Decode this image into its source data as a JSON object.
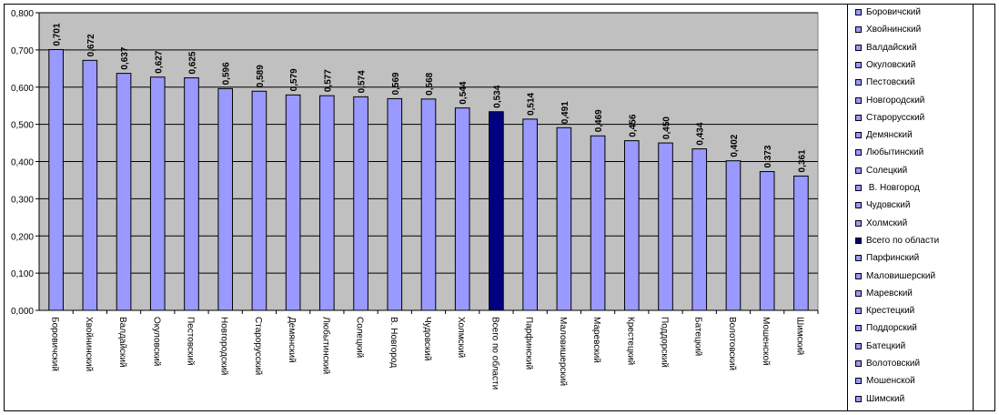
{
  "chart_data": {
    "type": "bar",
    "categories": [
      "Боровичский",
      "Хвойнинский",
      "Валдайский",
      "Окуловский",
      "Пестовский",
      "Новгородский",
      "Старорусский",
      "Демянский",
      "Любытинский",
      "Солецкий",
      "В. Новгород",
      "Чудовский",
      "Холмский",
      "Всего по области",
      "Парфинский",
      "Маловишерский",
      "Маревский",
      "Крестецкий",
      "Поддорский",
      "Батецкий",
      "Волотовский",
      "Мошенской",
      "Шимский"
    ],
    "values": [
      0.701,
      0.672,
      0.637,
      0.627,
      0.625,
      0.596,
      0.589,
      0.579,
      0.577,
      0.574,
      0.569,
      0.568,
      0.544,
      0.534,
      0.514,
      0.491,
      0.469,
      0.456,
      0.45,
      0.434,
      0.402,
      0.373,
      0.361
    ],
    "value_labels": [
      "0,701",
      "0,672",
      "0,637",
      "0,627",
      "0,625",
      "0,596",
      "0,589",
      "0,579",
      "0,577",
      "0,574",
      "0,569",
      "0,568",
      "0,544",
      "0,534",
      "0,514",
      "0,491",
      "0,469",
      "0,456",
      "0,450",
      "0,434",
      "0,402",
      "0,373",
      "0,361"
    ],
    "y_ticks": [
      0,
      0.1,
      0.2,
      0.3,
      0.4,
      0.5,
      0.6,
      0.7,
      0.8
    ],
    "y_tick_labels": [
      "0,000",
      "0,100",
      "0,200",
      "0,300",
      "0,400",
      "0,500",
      "0,600",
      "0,700",
      "0,800"
    ],
    "ylim": [
      0,
      0.8
    ],
    "title": "",
    "xlabel": "",
    "ylabel": "",
    "grid": true,
    "legend_position": "right",
    "highlight_category": "Всего по области",
    "colors": {
      "bar": "#9999ff",
      "highlight_bar": "#000080",
      "plot_background": "#c0c0c0",
      "gridline": "#000000"
    }
  },
  "legend": {
    "items": [
      "Боровичский",
      "Хвойнинский",
      "Валдайский",
      "Окуловский",
      "Пестовский",
      "Новгородский",
      "Старорусский",
      "Демянский",
      "Любытинский",
      "Солецкий",
      " В. Новгород",
      "Чудовский",
      "Холмский",
      "Всего по области",
      "Парфинский",
      "Маловишерский",
      "Маревский",
      "Крестецкий",
      "Поддорский",
      "Батецкий",
      "Волотовский",
      "Мошенской",
      "Шимский"
    ]
  }
}
